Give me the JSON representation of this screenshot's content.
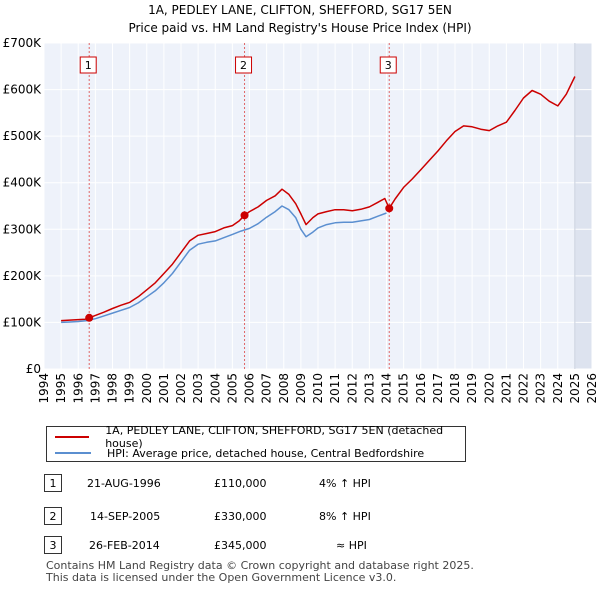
{
  "chart_data": {
    "type": "line",
    "title": "1A, PEDLEY LANE, CLIFTON, SHEFFORD, SG17 5EN",
    "subtitle": "Price paid vs. HM Land Registry's House Price Index (HPI)",
    "x_range": [
      1994,
      2026
    ],
    "ylim": [
      0,
      700000
    ],
    "x_ticks": [
      "1994",
      "1995",
      "1996",
      "1997",
      "1998",
      "1999",
      "2000",
      "2001",
      "2002",
      "2003",
      "2004",
      "2005",
      "2006",
      "2007",
      "2008",
      "2009",
      "2010",
      "2011",
      "2012",
      "2013",
      "2014",
      "2015",
      "2016",
      "2017",
      "2018",
      "2019",
      "2020",
      "2021",
      "2022",
      "2023",
      "2024",
      "2025",
      "2026"
    ],
    "y_ticks": [
      {
        "value": 0,
        "label": "£0"
      },
      {
        "value": 100000,
        "label": "£100K"
      },
      {
        "value": 200000,
        "label": "£200K"
      },
      {
        "value": 300000,
        "label": "£300K"
      },
      {
        "value": 400000,
        "label": "£400K"
      },
      {
        "value": 500000,
        "label": "£500K"
      },
      {
        "value": 600000,
        "label": "£600K"
      },
      {
        "value": 700000,
        "label": "£700K"
      }
    ],
    "future_shade_start": 2025.0,
    "grid": true,
    "series": [
      {
        "name": "1A, PEDLEY LANE, CLIFTON, SHEFFORD, SG17 5EN (detached house)",
        "color": "#cc0000",
        "x": [
          1995.0,
          1995.5,
          1996.0,
          1996.4,
          1996.64,
          1997.0,
          1997.5,
          1998.0,
          1998.5,
          1999.0,
          1999.5,
          2000.0,
          2000.5,
          2001.0,
          2001.5,
          2002.0,
          2002.5,
          2003.0,
          2003.5,
          2004.0,
          2004.5,
          2005.0,
          2005.4,
          2005.71,
          2006.0,
          2006.5,
          2007.0,
          2007.5,
          2007.9,
          2008.3,
          2008.7,
          2009.0,
          2009.3,
          2009.7,
          2010.0,
          2010.5,
          2011.0,
          2011.5,
          2012.0,
          2012.5,
          2013.0,
          2013.5,
          2013.9,
          2014.16,
          2014.5,
          2015.0,
          2015.5,
          2016.0,
          2016.5,
          2017.0,
          2017.5,
          2018.0,
          2018.5,
          2019.0,
          2019.5,
          2020.0,
          2020.5,
          2021.0,
          2021.5,
          2022.0,
          2022.5,
          2023.0,
          2023.5,
          2024.0,
          2024.5,
          2025.0
        ],
        "values": [
          104000,
          105000,
          106000,
          107000,
          110000,
          115000,
          122000,
          130000,
          137000,
          143000,
          155000,
          170000,
          185000,
          205000,
          225000,
          250000,
          275000,
          287000,
          291000,
          295000,
          303000,
          308000,
          318000,
          330000,
          338000,
          348000,
          362000,
          372000,
          386000,
          375000,
          355000,
          333000,
          310000,
          325000,
          333000,
          338000,
          342000,
          342000,
          340000,
          343000,
          348000,
          358000,
          366000,
          345000,
          365000,
          390000,
          408000,
          428000,
          448000,
          468000,
          490000,
          510000,
          522000,
          520000,
          515000,
          512000,
          522000,
          530000,
          555000,
          582000,
          598000,
          590000,
          575000,
          565000,
          590000,
          628000
        ]
      },
      {
        "name": "HPI: Average price, detached house, Central Bedfordshire",
        "color": "#5b8fd0",
        "x": [
          1995.0,
          1995.5,
          1996.0,
          1996.5,
          1997.0,
          1997.5,
          1998.0,
          1998.5,
          1999.0,
          1999.5,
          2000.0,
          2000.5,
          2001.0,
          2001.5,
          2002.0,
          2002.5,
          2003.0,
          2003.5,
          2004.0,
          2004.5,
          2005.0,
          2005.5,
          2006.0,
          2006.5,
          2007.0,
          2007.5,
          2007.9,
          2008.3,
          2008.7,
          2009.0,
          2009.3,
          2009.7,
          2010.0,
          2010.5,
          2011.0,
          2011.5,
          2012.0,
          2012.5,
          2013.0,
          2013.5,
          2014.0
        ],
        "values": [
          100000,
          101000,
          102000,
          104000,
          108000,
          114000,
          120000,
          126000,
          132000,
          142000,
          155000,
          168000,
          185000,
          205000,
          230000,
          255000,
          268000,
          272000,
          275000,
          282000,
          289000,
          296000,
          302000,
          312000,
          326000,
          338000,
          350000,
          342000,
          325000,
          300000,
          284000,
          294000,
          303000,
          310000,
          314000,
          315000,
          315000,
          318000,
          321000,
          328000,
          335000
        ]
      }
    ],
    "transactions": [
      {
        "label": "1",
        "x": 1996.64,
        "value": 110000,
        "date": "21-AUG-1996",
        "price": "£110,000",
        "hpi": "4% ↑ HPI"
      },
      {
        "label": "2",
        "x": 2005.71,
        "value": 330000,
        "date": "14-SEP-2005",
        "price": "£330,000",
        "hpi": "8% ↑ HPI"
      },
      {
        "label": "3",
        "x": 2014.16,
        "value": 345000,
        "date": "26-FEB-2014",
        "price": "£345,000",
        "hpi": "≈ HPI"
      }
    ],
    "legend_position": "below"
  },
  "legend": {
    "property_label": "1A, PEDLEY LANE, CLIFTON, SHEFFORD, SG17 5EN (detached house)",
    "hpi_label": "HPI: Average price, detached house, Central Bedfordshire",
    "property_color": "#cc0000",
    "hpi_color": "#5b8fd0"
  },
  "transactions": [
    {
      "num": "1",
      "date": "21-AUG-1996",
      "price": "£110,000",
      "hpi": "4% ↑ HPI"
    },
    {
      "num": "2",
      "date": "14-SEP-2005",
      "price": "£330,000",
      "hpi": "8% ↑ HPI"
    },
    {
      "num": "3",
      "date": "26-FEB-2014",
      "price": "£345,000",
      "hpi": "≈ HPI"
    }
  ],
  "footer": {
    "line1": "Contains HM Land Registry data © Crown copyright and database right 2025.",
    "line2": "This data is licensed under the Open Government Licence v3.0."
  }
}
